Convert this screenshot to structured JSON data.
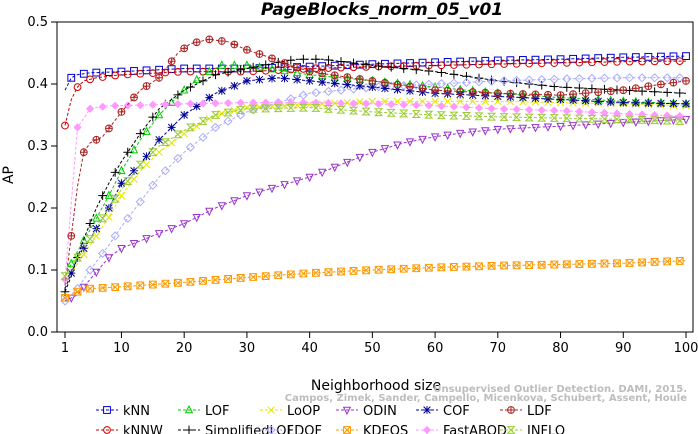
{
  "chart_data": {
    "type": "line",
    "title": "PageBlocks_norm_05_v01",
    "xlabel": "Neighborhood size",
    "ylabel": "AP",
    "xlim": [
      1,
      100
    ],
    "ylim": [
      0.0,
      0.5
    ],
    "xticks": [
      1,
      10,
      20,
      30,
      40,
      50,
      60,
      70,
      80,
      90,
      100
    ],
    "yticks": [
      0.0,
      0.1,
      0.2,
      0.3,
      0.4,
      0.5
    ],
    "xtick_labels": [
      "1",
      "10",
      "20",
      "30",
      "40",
      "50",
      "60",
      "70",
      "80",
      "90",
      "100"
    ],
    "ytick_labels": [
      "0.0",
      "0.1",
      "0.2",
      "0.3",
      "0.4",
      "0.5"
    ],
    "grid": false,
    "legend_position": "bottom",
    "watermark": [
      "Campos, Zimek, Sander, Campello, Micenkova, Schubert, Assent, Houle",
      "Unsupervised Outlier Detection. DAMI, 2015."
    ],
    "series": [
      {
        "name": "kNN",
        "color": "#0000cc",
        "marker": "square",
        "points": [
          [
            1,
            0.39
          ],
          [
            2,
            0.41
          ],
          [
            3,
            0.415
          ],
          [
            5,
            0.418
          ],
          [
            10,
            0.42
          ],
          [
            20,
            0.425
          ],
          [
            30,
            0.425
          ],
          [
            40,
            0.428
          ],
          [
            50,
            0.432
          ],
          [
            60,
            0.435
          ],
          [
            70,
            0.438
          ],
          [
            80,
            0.44
          ],
          [
            90,
            0.443
          ],
          [
            100,
            0.445
          ]
        ]
      },
      {
        "name": "kNNW",
        "color": "#cc0000",
        "marker": "circle",
        "points": [
          [
            1,
            0.333
          ],
          [
            2,
            0.375
          ],
          [
            3,
            0.395
          ],
          [
            4,
            0.405
          ],
          [
            6,
            0.41
          ],
          [
            10,
            0.415
          ],
          [
            20,
            0.42
          ],
          [
            30,
            0.42
          ],
          [
            40,
            0.425
          ],
          [
            50,
            0.428
          ],
          [
            60,
            0.43
          ],
          [
            70,
            0.432
          ],
          [
            80,
            0.434
          ],
          [
            90,
            0.436
          ],
          [
            100,
            0.437
          ]
        ]
      },
      {
        "name": "LOF",
        "color": "#00cc00",
        "marker": "triangle-up",
        "points": [
          [
            1,
            0.09
          ],
          [
            3,
            0.13
          ],
          [
            5,
            0.165
          ],
          [
            8,
            0.22
          ],
          [
            10,
            0.26
          ],
          [
            13,
            0.31
          ],
          [
            16,
            0.35
          ],
          [
            20,
            0.39
          ],
          [
            23,
            0.415
          ],
          [
            26,
            0.43
          ],
          [
            30,
            0.43
          ],
          [
            40,
            0.415
          ],
          [
            50,
            0.405
          ],
          [
            60,
            0.395
          ],
          [
            70,
            0.385
          ],
          [
            80,
            0.378
          ],
          [
            90,
            0.372
          ],
          [
            100,
            0.368
          ]
        ]
      },
      {
        "name": "SimplifiedLOF",
        "color": "#000000",
        "marker": "plus",
        "points": [
          [
            1,
            0.065
          ],
          [
            2,
            0.09
          ],
          [
            4,
            0.15
          ],
          [
            6,
            0.2
          ],
          [
            8,
            0.24
          ],
          [
            10,
            0.275
          ],
          [
            13,
            0.32
          ],
          [
            16,
            0.36
          ],
          [
            20,
            0.39
          ],
          [
            25,
            0.415
          ],
          [
            30,
            0.425
          ],
          [
            35,
            0.435
          ],
          [
            38,
            0.44
          ],
          [
            42,
            0.44
          ],
          [
            50,
            0.43
          ],
          [
            60,
            0.42
          ],
          [
            70,
            0.405
          ],
          [
            80,
            0.395
          ],
          [
            90,
            0.39
          ],
          [
            100,
            0.385
          ]
        ]
      },
      {
        "name": "LoOP",
        "color": "#e6e600",
        "marker": "x",
        "points": [
          [
            1,
            0.08
          ],
          [
            3,
            0.11
          ],
          [
            5,
            0.14
          ],
          [
            8,
            0.185
          ],
          [
            10,
            0.22
          ],
          [
            13,
            0.26
          ],
          [
            16,
            0.29
          ],
          [
            20,
            0.32
          ],
          [
            25,
            0.35
          ],
          [
            30,
            0.362
          ],
          [
            40,
            0.367
          ],
          [
            50,
            0.372
          ],
          [
            60,
            0.372
          ],
          [
            70,
            0.372
          ],
          [
            80,
            0.37
          ],
          [
            90,
            0.368
          ],
          [
            100,
            0.365
          ]
        ]
      },
      {
        "name": "LDOF",
        "color": "#aaaaff",
        "marker": "diamond",
        "points": [
          [
            1,
            0.05
          ],
          [
            3,
            0.07
          ],
          [
            5,
            0.1
          ],
          [
            8,
            0.14
          ],
          [
            10,
            0.17
          ],
          [
            13,
            0.21
          ],
          [
            16,
            0.25
          ],
          [
            20,
            0.29
          ],
          [
            25,
            0.33
          ],
          [
            30,
            0.355
          ],
          [
            35,
            0.37
          ],
          [
            40,
            0.385
          ],
          [
            50,
            0.395
          ],
          [
            60,
            0.4
          ],
          [
            70,
            0.405
          ],
          [
            80,
            0.408
          ],
          [
            90,
            0.41
          ],
          [
            100,
            0.41
          ]
        ]
      },
      {
        "name": "ODIN",
        "color": "#9933cc",
        "marker": "triangle-down",
        "points": [
          [
            1,
            0.05
          ],
          [
            3,
            0.06
          ],
          [
            5,
            0.085
          ],
          [
            8,
            0.12
          ],
          [
            10,
            0.135
          ],
          [
            15,
            0.155
          ],
          [
            20,
            0.175
          ],
          [
            25,
            0.2
          ],
          [
            30,
            0.22
          ],
          [
            35,
            0.235
          ],
          [
            40,
            0.25
          ],
          [
            45,
            0.27
          ],
          [
            50,
            0.29
          ],
          [
            55,
            0.305
          ],
          [
            60,
            0.315
          ],
          [
            65,
            0.322
          ],
          [
            70,
            0.327
          ],
          [
            80,
            0.332
          ],
          [
            90,
            0.338
          ],
          [
            100,
            0.343
          ]
        ]
      },
      {
        "name": "KDEOS",
        "color": "#ff9900",
        "marker": "square-x",
        "points": [
          [
            1,
            0.055
          ],
          [
            3,
            0.065
          ],
          [
            5,
            0.07
          ],
          [
            10,
            0.073
          ],
          [
            20,
            0.08
          ],
          [
            30,
            0.088
          ],
          [
            40,
            0.095
          ],
          [
            50,
            0.1
          ],
          [
            60,
            0.104
          ],
          [
            70,
            0.107
          ],
          [
            80,
            0.109
          ],
          [
            90,
            0.111
          ],
          [
            100,
            0.115
          ]
        ]
      },
      {
        "name": "COF",
        "color": "#000099",
        "marker": "star",
        "points": [
          [
            1,
            0.07
          ],
          [
            3,
            0.12
          ],
          [
            5,
            0.15
          ],
          [
            8,
            0.2
          ],
          [
            10,
            0.24
          ],
          [
            13,
            0.27
          ],
          [
            16,
            0.31
          ],
          [
            20,
            0.35
          ],
          [
            25,
            0.385
          ],
          [
            30,
            0.405
          ],
          [
            35,
            0.41
          ],
          [
            40,
            0.405
          ],
          [
            50,
            0.395
          ],
          [
            60,
            0.385
          ],
          [
            70,
            0.38
          ],
          [
            80,
            0.375
          ],
          [
            90,
            0.37
          ],
          [
            100,
            0.368
          ]
        ]
      },
      {
        "name": "FastABOD",
        "color": "#ff99ff",
        "marker": "diamond-filled",
        "points": [
          [
            1,
            0.085
          ],
          [
            3,
            0.33
          ],
          [
            5,
            0.36
          ],
          [
            8,
            0.365
          ],
          [
            10,
            0.365
          ],
          [
            20,
            0.368
          ],
          [
            30,
            0.37
          ],
          [
            40,
            0.37
          ],
          [
            50,
            0.368
          ],
          [
            60,
            0.365
          ],
          [
            70,
            0.36
          ],
          [
            80,
            0.357
          ],
          [
            90,
            0.352
          ],
          [
            100,
            0.348
          ]
        ]
      },
      {
        "name": "LDF",
        "color": "#aa2222",
        "marker": "circle-plus",
        "points": [
          [
            1,
            0.075
          ],
          [
            2,
            0.155
          ],
          [
            3,
            0.235
          ],
          [
            4,
            0.29
          ],
          [
            5,
            0.305
          ],
          [
            7,
            0.315
          ],
          [
            10,
            0.355
          ],
          [
            13,
            0.39
          ],
          [
            16,
            0.41
          ],
          [
            19,
            0.45
          ],
          [
            21,
            0.465
          ],
          [
            24,
            0.472
          ],
          [
            27,
            0.468
          ],
          [
            30,
            0.455
          ],
          [
            33,
            0.445
          ],
          [
            37,
            0.43
          ],
          [
            40,
            0.42
          ],
          [
            50,
            0.405
          ],
          [
            60,
            0.39
          ],
          [
            70,
            0.385
          ],
          [
            80,
            0.382
          ],
          [
            90,
            0.39
          ],
          [
            95,
            0.398
          ],
          [
            100,
            0.405
          ]
        ]
      },
      {
        "name": "INFLO",
        "color": "#99cc33",
        "marker": "hourglass",
        "points": [
          [
            1,
            0.09
          ],
          [
            3,
            0.12
          ],
          [
            5,
            0.15
          ],
          [
            8,
            0.2
          ],
          [
            10,
            0.23
          ],
          [
            13,
            0.27
          ],
          [
            16,
            0.3
          ],
          [
            20,
            0.325
          ],
          [
            25,
            0.35
          ],
          [
            30,
            0.36
          ],
          [
            40,
            0.362
          ],
          [
            50,
            0.355
          ],
          [
            60,
            0.35
          ],
          [
            70,
            0.347
          ],
          [
            80,
            0.345
          ],
          [
            90,
            0.343
          ],
          [
            100,
            0.34
          ]
        ]
      }
    ]
  }
}
